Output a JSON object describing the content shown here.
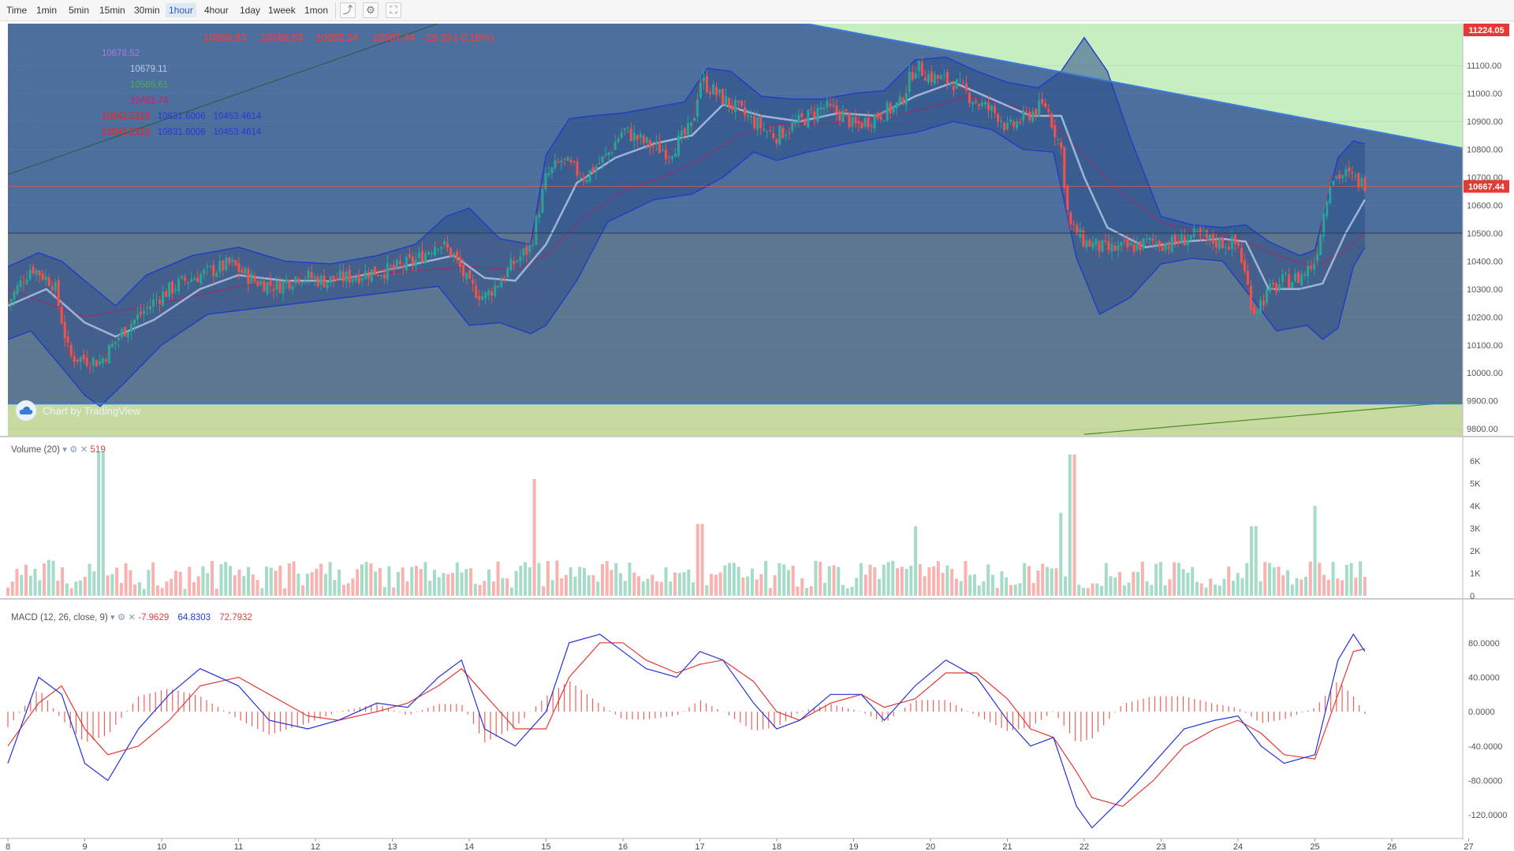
{
  "toolbar": {
    "intervals": [
      "Time",
      "1min",
      "5min",
      "15min",
      "30min",
      "1hour",
      "4hour",
      "1day",
      "1week",
      "1mon"
    ],
    "active_interval": "1hour",
    "icons": [
      "chart-type-icon",
      "settings-icon",
      "fullscreen-icon"
    ]
  },
  "legend": {
    "ohlc": [
      "10686.83",
      "10686.83",
      "10655.34",
      "10667.44",
      "-19.39 (-0.18%)"
    ],
    "ma_values": [
      "10678.52",
      "10679.11",
      "10585.61",
      "10481.74"
    ],
    "bb_rows": [
      [
        "10642.5310",
        "10831.6006",
        "10453.4614"
      ],
      [
        "10642.5310",
        "10831.6006",
        "10453.4614"
      ]
    ],
    "branding": "Chart by TradingView"
  },
  "volume_legend": {
    "label": "Volume (20)",
    "value": "519"
  },
  "macd_legend": {
    "label": "MACD (12, 26, close, 9)",
    "hist": "-7.9629",
    "macd": "64.8303",
    "signal": "72.7932"
  },
  "colors": {
    "up": "#26a69a",
    "down": "#ef5350",
    "bb_fill": "#2c4f86",
    "bb_line": "#1e3cc8",
    "trend": "#3b7be0",
    "green_zone": "#c6eec0"
  },
  "chart_data": {
    "type": "candlestick",
    "title": "",
    "x_ticks": [
      "8",
      "9",
      "10",
      "11",
      "12",
      "13",
      "14",
      "15",
      "16",
      "17",
      "18",
      "19",
      "20",
      "21",
      "22",
      "23",
      "24",
      "25",
      "26",
      "27"
    ],
    "price_axis": {
      "ticks": [
        "11100.00",
        "11000.00",
        "10900.00",
        "10800.00",
        "10700.00",
        "10600.00",
        "10500.00",
        "10400.00",
        "10300.00",
        "10200.00",
        "10100.00",
        "10000.00",
        "9900.00",
        "9800.00"
      ],
      "ylim": [
        9775,
        11250
      ]
    },
    "price_labels": {
      "high_marker": "11224.05",
      "last_price": "10667.44",
      "last_value": 10667.44,
      "horizontal_line": 10500
    },
    "close_path": [
      [
        8.0,
        10250
      ],
      [
        8.3,
        10380
      ],
      [
        8.6,
        10320
      ],
      [
        8.8,
        10060
      ],
      [
        9.0,
        10050
      ],
      [
        9.2,
        10040
      ],
      [
        9.5,
        10150
      ],
      [
        9.8,
        10230
      ],
      [
        10.0,
        10280
      ],
      [
        10.3,
        10330
      ],
      [
        10.6,
        10360
      ],
      [
        10.9,
        10390
      ],
      [
        11.2,
        10330
      ],
      [
        11.5,
        10310
      ],
      [
        11.8,
        10350
      ],
      [
        12.1,
        10330
      ],
      [
        12.4,
        10340
      ],
      [
        12.7,
        10360
      ],
      [
        13.0,
        10370
      ],
      [
        13.3,
        10400
      ],
      [
        13.6,
        10470
      ],
      [
        13.8,
        10420
      ],
      [
        14.0,
        10310
      ],
      [
        14.2,
        10270
      ],
      [
        14.4,
        10330
      ],
      [
        14.6,
        10400
      ],
      [
        14.8,
        10450
      ],
      [
        15.0,
        10700
      ],
      [
        15.2,
        10760
      ],
      [
        15.5,
        10700
      ],
      [
        15.8,
        10780
      ],
      [
        16.0,
        10870
      ],
      [
        16.3,
        10820
      ],
      [
        16.6,
        10790
      ],
      [
        16.9,
        10880
      ],
      [
        17.0,
        11050
      ],
      [
        17.3,
        10980
      ],
      [
        17.6,
        10920
      ],
      [
        17.9,
        10860
      ],
      [
        18.0,
        10850
      ],
      [
        18.3,
        10900
      ],
      [
        18.6,
        10950
      ],
      [
        18.9,
        10920
      ],
      [
        19.0,
        10880
      ],
      [
        19.3,
        10920
      ],
      [
        19.6,
        10960
      ],
      [
        19.8,
        11100
      ],
      [
        20.0,
        11060
      ],
      [
        20.3,
        11040
      ],
      [
        20.6,
        10970
      ],
      [
        20.9,
        10920
      ],
      [
        21.0,
        10870
      ],
      [
        21.3,
        10930
      ],
      [
        21.5,
        10960
      ],
      [
        21.7,
        10800
      ],
      [
        21.8,
        10530
      ],
      [
        22.0,
        10470
      ],
      [
        22.3,
        10440
      ],
      [
        22.6,
        10450
      ],
      [
        22.9,
        10470
      ],
      [
        23.1,
        10460
      ],
      [
        23.4,
        10490
      ],
      [
        23.7,
        10470
      ],
      [
        24.0,
        10460
      ],
      [
        24.2,
        10220
      ],
      [
        24.4,
        10290
      ],
      [
        24.6,
        10330
      ],
      [
        24.8,
        10340
      ],
      [
        25.0,
        10400
      ],
      [
        25.2,
        10700
      ],
      [
        25.4,
        10710
      ],
      [
        25.6,
        10680
      ]
    ],
    "bb_upper": [
      [
        8.0,
        10380
      ],
      [
        8.4,
        10430
      ],
      [
        8.7,
        10400
      ],
      [
        9.0,
        10330
      ],
      [
        9.4,
        10240
      ],
      [
        9.8,
        10350
      ],
      [
        10.4,
        10420
      ],
      [
        11.0,
        10450
      ],
      [
        11.6,
        10400
      ],
      [
        12.2,
        10390
      ],
      [
        12.8,
        10420
      ],
      [
        13.3,
        10460
      ],
      [
        13.7,
        10560
      ],
      [
        14.0,
        10590
      ],
      [
        14.4,
        10480
      ],
      [
        14.8,
        10460
      ],
      [
        15.0,
        10780
      ],
      [
        15.3,
        10910
      ],
      [
        15.6,
        10920
      ],
      [
        16.0,
        10930
      ],
      [
        16.4,
        10950
      ],
      [
        16.8,
        10970
      ],
      [
        17.1,
        11090
      ],
      [
        17.4,
        11080
      ],
      [
        17.8,
        10990
      ],
      [
        18.2,
        10980
      ],
      [
        18.6,
        10980
      ],
      [
        19.0,
        11000
      ],
      [
        19.4,
        11010
      ],
      [
        19.8,
        11120
      ],
      [
        20.2,
        11130
      ],
      [
        20.6,
        11080
      ],
      [
        21.0,
        11040
      ],
      [
        21.4,
        11020
      ],
      [
        21.7,
        11080
      ],
      [
        22.0,
        11200
      ],
      [
        22.3,
        11080
      ],
      [
        22.6,
        10840
      ],
      [
        23.0,
        10560
      ],
      [
        23.4,
        10530
      ],
      [
        23.8,
        10520
      ],
      [
        24.1,
        10530
      ],
      [
        24.4,
        10470
      ],
      [
        24.8,
        10420
      ],
      [
        25.0,
        10440
      ],
      [
        25.3,
        10770
      ],
      [
        25.5,
        10830
      ],
      [
        25.65,
        10820
      ]
    ],
    "bb_lower": [
      [
        8.0,
        10120
      ],
      [
        8.3,
        10150
      ],
      [
        8.7,
        10020
      ],
      [
        9.0,
        9920
      ],
      [
        9.2,
        9880
      ],
      [
        9.5,
        9960
      ],
      [
        10.0,
        10100
      ],
      [
        10.6,
        10210
      ],
      [
        11.2,
        10230
      ],
      [
        11.8,
        10250
      ],
      [
        12.4,
        10270
      ],
      [
        13.0,
        10290
      ],
      [
        13.6,
        10310
      ],
      [
        14.0,
        10170
      ],
      [
        14.4,
        10180
      ],
      [
        14.8,
        10140
      ],
      [
        15.0,
        10170
      ],
      [
        15.4,
        10330
      ],
      [
        15.8,
        10540
      ],
      [
        16.4,
        10620
      ],
      [
        16.9,
        10640
      ],
      [
        17.3,
        10700
      ],
      [
        17.7,
        10790
      ],
      [
        18.0,
        10760
      ],
      [
        18.4,
        10790
      ],
      [
        18.9,
        10820
      ],
      [
        19.3,
        10840
      ],
      [
        19.8,
        10860
      ],
      [
        20.3,
        10900
      ],
      [
        20.8,
        10870
      ],
      [
        21.2,
        10800
      ],
      [
        21.6,
        10790
      ],
      [
        21.9,
        10410
      ],
      [
        22.2,
        10210
      ],
      [
        22.6,
        10270
      ],
      [
        23.0,
        10390
      ],
      [
        23.4,
        10410
      ],
      [
        23.8,
        10400
      ],
      [
        24.2,
        10260
      ],
      [
        24.5,
        10150
      ],
      [
        24.9,
        10170
      ],
      [
        25.1,
        10120
      ],
      [
        25.3,
        10160
      ],
      [
        25.5,
        10380
      ],
      [
        25.65,
        10450
      ]
    ],
    "ma_mid": [
      [
        8.0,
        10240
      ],
      [
        8.5,
        10300
      ],
      [
        9.0,
        10180
      ],
      [
        9.4,
        10130
      ],
      [
        9.9,
        10190
      ],
      [
        10.5,
        10300
      ],
      [
        11.0,
        10350
      ],
      [
        11.6,
        10330
      ],
      [
        12.2,
        10330
      ],
      [
        12.8,
        10360
      ],
      [
        13.3,
        10390
      ],
      [
        13.8,
        10420
      ],
      [
        14.2,
        10340
      ],
      [
        14.6,
        10330
      ],
      [
        15.0,
        10460
      ],
      [
        15.4,
        10680
      ],
      [
        15.9,
        10770
      ],
      [
        16.4,
        10820
      ],
      [
        16.9,
        10850
      ],
      [
        17.3,
        10960
      ],
      [
        17.8,
        10920
      ],
      [
        18.3,
        10900
      ],
      [
        18.8,
        10930
      ],
      [
        19.3,
        10920
      ],
      [
        19.8,
        10990
      ],
      [
        20.3,
        11040
      ],
      [
        20.8,
        10980
      ],
      [
        21.3,
        10920
      ],
      [
        21.7,
        10920
      ],
      [
        22.0,
        10700
      ],
      [
        22.3,
        10520
      ],
      [
        22.8,
        10450
      ],
      [
        23.3,
        10470
      ],
      [
        23.8,
        10480
      ],
      [
        24.1,
        10470
      ],
      [
        24.4,
        10300
      ],
      [
        24.8,
        10300
      ],
      [
        25.1,
        10320
      ],
      [
        25.4,
        10500
      ],
      [
        25.65,
        10620
      ]
    ],
    "ma_slow": [
      [
        8.0,
        10300
      ],
      [
        9.0,
        10200
      ],
      [
        10.0,
        10250
      ],
      [
        11.0,
        10310
      ],
      [
        12.0,
        10330
      ],
      [
        13.0,
        10360
      ],
      [
        14.0,
        10380
      ],
      [
        14.6,
        10370
      ],
      [
        15.0,
        10420
      ],
      [
        15.5,
        10560
      ],
      [
        16.0,
        10650
      ],
      [
        16.5,
        10700
      ],
      [
        17.0,
        10760
      ],
      [
        17.5,
        10850
      ],
      [
        18.0,
        10890
      ],
      [
        18.5,
        10890
      ],
      [
        19.0,
        10900
      ],
      [
        19.5,
        10920
      ],
      [
        20.0,
        10950
      ],
      [
        20.5,
        10990
      ],
      [
        21.0,
        10960
      ],
      [
        21.5,
        10920
      ],
      [
        22.0,
        10780
      ],
      [
        22.5,
        10640
      ],
      [
        23.0,
        10540
      ],
      [
        23.5,
        10500
      ],
      [
        24.0,
        10480
      ],
      [
        24.5,
        10420
      ],
      [
        25.0,
        10380
      ],
      [
        25.4,
        10440
      ],
      [
        25.65,
        10500
      ]
    ],
    "trendline_upper": [
      [
        18.0,
        11270
      ],
      [
        27.0,
        10800
      ]
    ],
    "trendline_lower": [
      [
        22.0,
        9780
      ],
      [
        27.0,
        9900
      ]
    ],
    "support_level": 9890,
    "volume": {
      "ticks": [
        "6K",
        "5K",
        "4K",
        "3K",
        "2K",
        "1K",
        "0"
      ],
      "ylim": [
        0,
        6500
      ],
      "last": 519
    },
    "macd": {
      "ticks": [
        "80.0000",
        "40.0000",
        "0.0000",
        "-40.0000",
        "-80.0000",
        "-120.0000"
      ],
      "ylim": [
        -140,
        100
      ],
      "macd_line": [
        [
          8.0,
          -60
        ],
        [
          8.4,
          40
        ],
        [
          8.7,
          20
        ],
        [
          9.0,
          -60
        ],
        [
          9.3,
          -80
        ],
        [
          9.7,
          -20
        ],
        [
          10.1,
          20
        ],
        [
          10.5,
          50
        ],
        [
          11.0,
          30
        ],
        [
          11.4,
          -10
        ],
        [
          11.9,
          -20
        ],
        [
          12.3,
          -10
        ],
        [
          12.8,
          10
        ],
        [
          13.2,
          5
        ],
        [
          13.6,
          40
        ],
        [
          13.9,
          60
        ],
        [
          14.2,
          -20
        ],
        [
          14.6,
          -40
        ],
        [
          15.0,
          0
        ],
        [
          15.3,
          80
        ],
        [
          15.7,
          90
        ],
        [
          16.0,
          70
        ],
        [
          16.3,
          50
        ],
        [
          16.7,
          40
        ],
        [
          17.0,
          70
        ],
        [
          17.3,
          60
        ],
        [
          17.7,
          10
        ],
        [
          18.0,
          -20
        ],
        [
          18.3,
          -10
        ],
        [
          18.7,
          20
        ],
        [
          19.1,
          20
        ],
        [
          19.4,
          -10
        ],
        [
          19.8,
          30
        ],
        [
          20.2,
          60
        ],
        [
          20.6,
          40
        ],
        [
          21.0,
          -10
        ],
        [
          21.3,
          -40
        ],
        [
          21.6,
          -30
        ],
        [
          21.9,
          -110
        ],
        [
          22.1,
          -135
        ],
        [
          22.5,
          -100
        ],
        [
          22.9,
          -60
        ],
        [
          23.3,
          -20
        ],
        [
          23.7,
          -10
        ],
        [
          24.0,
          -5
        ],
        [
          24.3,
          -40
        ],
        [
          24.6,
          -60
        ],
        [
          25.0,
          -50
        ],
        [
          25.3,
          60
        ],
        [
          25.5,
          90
        ],
        [
          25.65,
          70
        ]
      ],
      "signal_line": [
        [
          8.0,
          -40
        ],
        [
          8.4,
          10
        ],
        [
          8.7,
          30
        ],
        [
          9.0,
          -20
        ],
        [
          9.3,
          -50
        ],
        [
          9.7,
          -40
        ],
        [
          10.1,
          -10
        ],
        [
          10.5,
          30
        ],
        [
          11.0,
          40
        ],
        [
          11.4,
          20
        ],
        [
          11.9,
          -5
        ],
        [
          12.3,
          -10
        ],
        [
          12.8,
          0
        ],
        [
          13.2,
          10
        ],
        [
          13.6,
          30
        ],
        [
          13.9,
          50
        ],
        [
          14.2,
          20
        ],
        [
          14.6,
          -20
        ],
        [
          15.0,
          -20
        ],
        [
          15.3,
          40
        ],
        [
          15.7,
          80
        ],
        [
          16.0,
          80
        ],
        [
          16.3,
          60
        ],
        [
          16.7,
          45
        ],
        [
          17.0,
          55
        ],
        [
          17.3,
          60
        ],
        [
          17.7,
          35
        ],
        [
          18.0,
          0
        ],
        [
          18.3,
          -10
        ],
        [
          18.7,
          10
        ],
        [
          19.1,
          20
        ],
        [
          19.4,
          5
        ],
        [
          19.8,
          15
        ],
        [
          20.2,
          45
        ],
        [
          20.6,
          45
        ],
        [
          21.0,
          15
        ],
        [
          21.3,
          -20
        ],
        [
          21.6,
          -30
        ],
        [
          21.9,
          -70
        ],
        [
          22.1,
          -100
        ],
        [
          22.5,
          -110
        ],
        [
          22.9,
          -80
        ],
        [
          23.3,
          -40
        ],
        [
          23.7,
          -20
        ],
        [
          24.0,
          -10
        ],
        [
          24.3,
          -25
        ],
        [
          24.6,
          -50
        ],
        [
          25.0,
          -55
        ],
        [
          25.3,
          20
        ],
        [
          25.5,
          70
        ],
        [
          25.65,
          73
        ]
      ]
    }
  }
}
